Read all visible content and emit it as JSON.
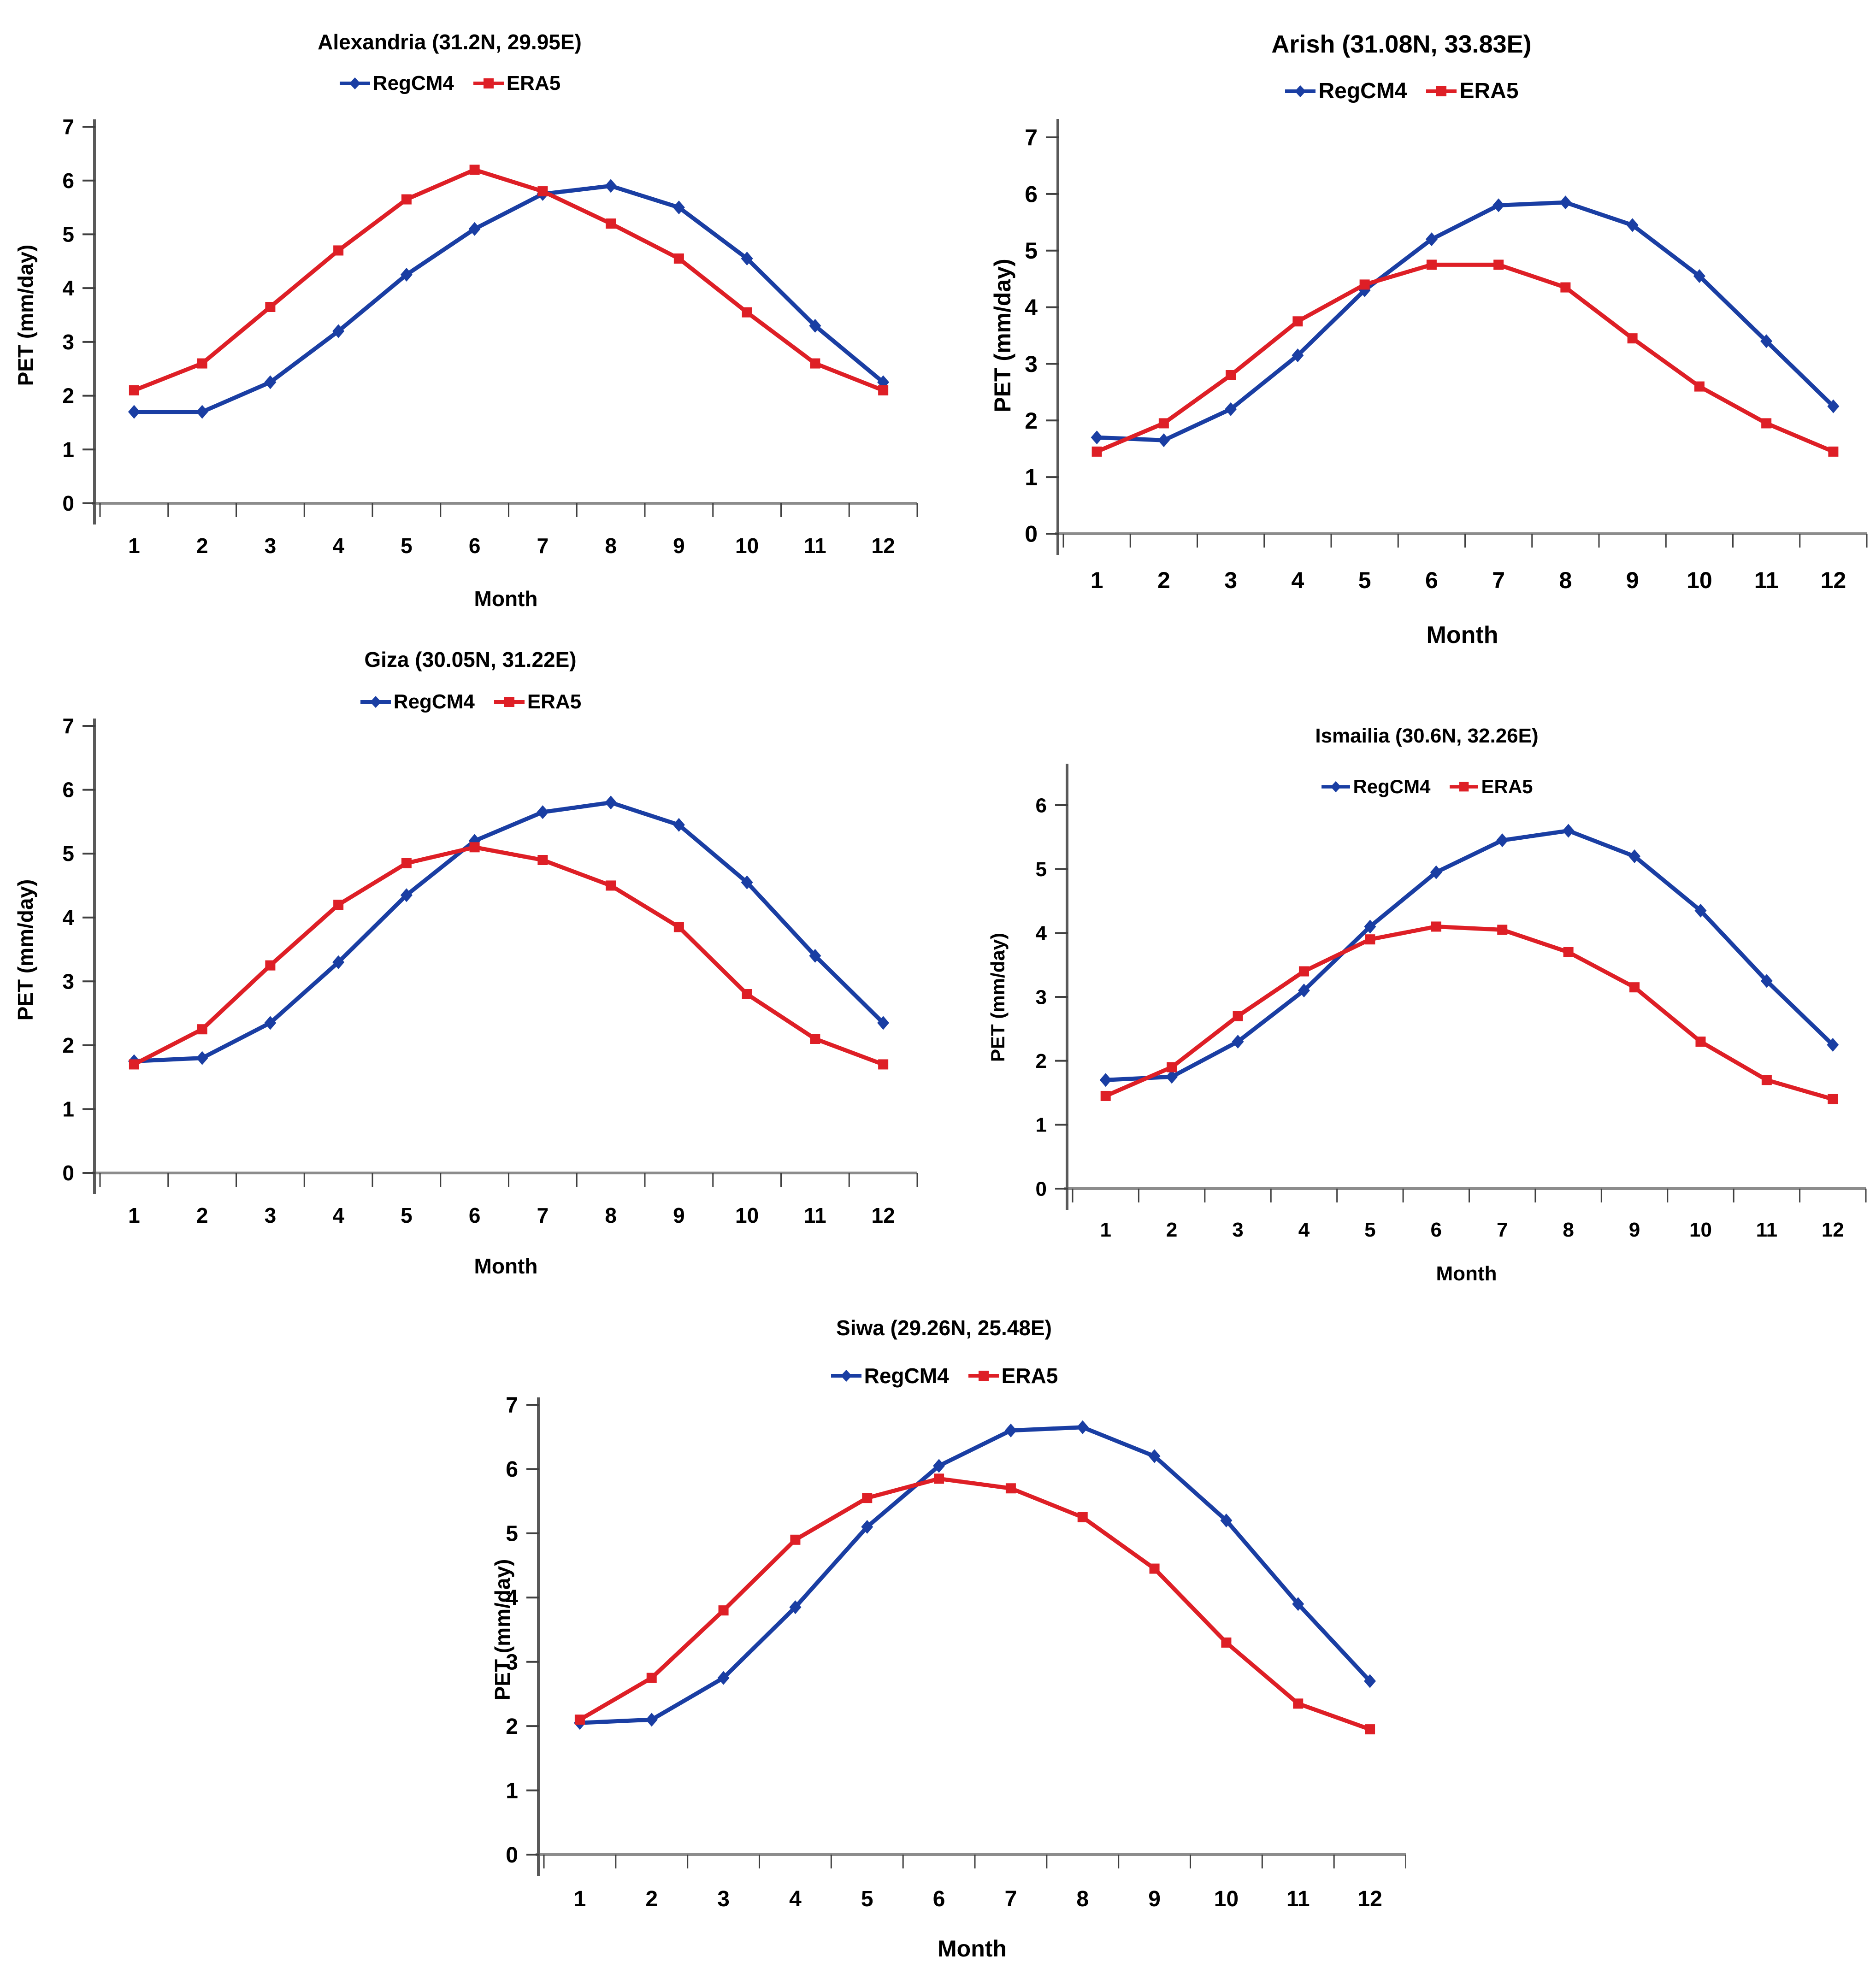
{
  "colors": {
    "regcm4": "#1A3EA3",
    "era5": "#DE1F26",
    "xaxis": "#8C8C8C",
    "yaxis": "#595959",
    "tick": "#404040",
    "text": "#000000"
  },
  "chart_data": [
    {
      "type": "line",
      "name": "alexandria",
      "title": "Alexandria (31.2N, 29.95E)",
      "xlabel": "Month",
      "ylabel": "PET (mm/day)",
      "x": [
        1,
        2,
        3,
        4,
        5,
        6,
        7,
        8,
        9,
        10,
        11,
        12
      ],
      "ylim": [
        0,
        7
      ],
      "ytick_step": 1,
      "grid": false,
      "legend_position": "top",
      "series": [
        {
          "name": "RegCM4",
          "color_key": "regcm4",
          "marker": "diamond",
          "values": [
            1.7,
            1.7,
            2.25,
            3.2,
            4.25,
            5.1,
            5.75,
            5.9,
            5.5,
            4.55,
            3.3,
            2.25
          ]
        },
        {
          "name": "ERA5",
          "color_key": "era5",
          "marker": "square",
          "values": [
            2.1,
            2.6,
            3.65,
            4.7,
            5.65,
            6.2,
            5.8,
            5.2,
            4.55,
            3.55,
            2.6,
            2.1
          ]
        }
      ]
    },
    {
      "type": "line",
      "name": "arish",
      "title": "Arish (31.08N, 33.83E)",
      "xlabel": "Month",
      "ylabel": "PET (mm/day)",
      "x": [
        1,
        2,
        3,
        4,
        5,
        6,
        7,
        8,
        9,
        10,
        11,
        12
      ],
      "ylim": [
        0,
        7
      ],
      "ytick_step": 1,
      "grid": false,
      "legend_position": "top",
      "series": [
        {
          "name": "RegCM4",
          "color_key": "regcm4",
          "marker": "diamond",
          "values": [
            1.7,
            1.65,
            2.2,
            3.15,
            4.3,
            5.2,
            5.8,
            5.85,
            5.45,
            4.55,
            3.4,
            2.25
          ]
        },
        {
          "name": "ERA5",
          "color_key": "era5",
          "marker": "square",
          "values": [
            1.45,
            1.95,
            2.8,
            3.75,
            4.4,
            4.75,
            4.75,
            4.35,
            3.45,
            2.6,
            1.95,
            1.45
          ]
        }
      ]
    },
    {
      "type": "line",
      "name": "giza",
      "title": "Giza (30.05N, 31.22E)",
      "xlabel": "Month",
      "ylabel": "PET (mm/day)",
      "x": [
        1,
        2,
        3,
        4,
        5,
        6,
        7,
        8,
        9,
        10,
        11,
        12
      ],
      "ylim": [
        0,
        7
      ],
      "ytick_step": 1,
      "grid": false,
      "legend_position": "top",
      "series": [
        {
          "name": "RegCM4",
          "color_key": "regcm4",
          "marker": "diamond",
          "values": [
            1.75,
            1.8,
            2.35,
            3.3,
            4.35,
            5.2,
            5.65,
            5.8,
            5.45,
            4.55,
            3.4,
            2.35
          ]
        },
        {
          "name": "ERA5",
          "color_key": "era5",
          "marker": "square",
          "values": [
            1.7,
            2.25,
            3.25,
            4.2,
            4.85,
            5.1,
            4.9,
            4.5,
            3.85,
            2.8,
            2.1,
            1.7
          ]
        }
      ]
    },
    {
      "type": "line",
      "name": "ismailia",
      "title": "Ismailia (30.6N, 32.26E)",
      "xlabel": "Month",
      "ylabel": "PET (mm/day)",
      "x": [
        1,
        2,
        3,
        4,
        5,
        6,
        7,
        8,
        9,
        10,
        11,
        12
      ],
      "ylim": [
        0,
        6
      ],
      "ytick_step": 1,
      "grid": false,
      "legend_position": "top",
      "series": [
        {
          "name": "RegCM4",
          "color_key": "regcm4",
          "marker": "diamond",
          "values": [
            1.7,
            1.75,
            2.3,
            3.1,
            4.1,
            4.95,
            5.45,
            5.6,
            5.2,
            4.35,
            3.25,
            2.25
          ]
        },
        {
          "name": "ERA5",
          "color_key": "era5",
          "marker": "square",
          "values": [
            1.45,
            1.9,
            2.7,
            3.4,
            3.9,
            4.1,
            4.05,
            3.7,
            3.15,
            2.3,
            1.7,
            1.4
          ]
        }
      ]
    },
    {
      "type": "line",
      "name": "siwa",
      "title": "Siwa (29.26N, 25.48E)",
      "xlabel": "Month",
      "ylabel": "PET (mm/day)",
      "x": [
        1,
        2,
        3,
        4,
        5,
        6,
        7,
        8,
        9,
        10,
        11,
        12
      ],
      "ylim": [
        0,
        7
      ],
      "ytick_step": 1,
      "grid": false,
      "legend_position": "top",
      "series": [
        {
          "name": "RegCM4",
          "color_key": "regcm4",
          "marker": "diamond",
          "values": [
            2.05,
            2.1,
            2.75,
            3.85,
            5.1,
            6.05,
            6.6,
            6.65,
            6.2,
            5.2,
            3.9,
            2.7
          ]
        },
        {
          "name": "ERA5",
          "color_key": "era5",
          "marker": "square",
          "values": [
            2.1,
            2.75,
            3.8,
            4.9,
            5.55,
            5.85,
            5.7,
            5.25,
            4.45,
            3.3,
            2.35,
            1.95
          ]
        }
      ]
    }
  ]
}
